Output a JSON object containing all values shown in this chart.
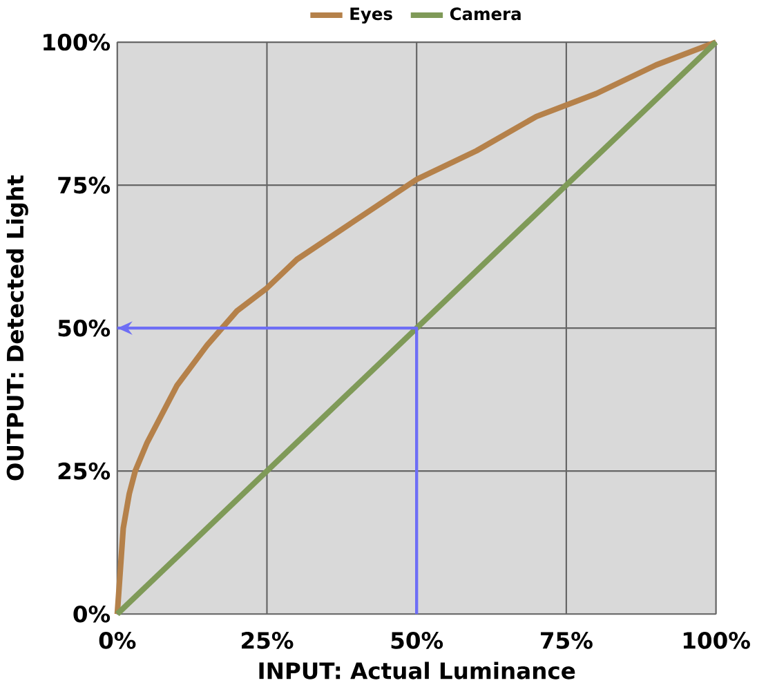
{
  "chart_data": {
    "type": "line",
    "xlabel": "INPUT: Actual Luminance",
    "ylabel": "OUTPUT: Detected Light",
    "xlim": [
      0,
      100
    ],
    "ylim": [
      0,
      100
    ],
    "xticks": [
      {
        "value": 0,
        "label": "0%"
      },
      {
        "value": 25,
        "label": "25%"
      },
      {
        "value": 50,
        "label": "50%"
      },
      {
        "value": 75,
        "label": "75%"
      },
      {
        "value": 100,
        "label": "100%"
      }
    ],
    "yticks": [
      {
        "value": 0,
        "label": "0%"
      },
      {
        "value": 25,
        "label": "25%"
      },
      {
        "value": 50,
        "label": "50%"
      },
      {
        "value": 75,
        "label": "75%"
      },
      {
        "value": 100,
        "label": "100%"
      }
    ],
    "grid": true,
    "legend": "top",
    "marker": "none",
    "line_style": "solid",
    "series": [
      {
        "name": "Eyes",
        "color": "#b5814a",
        "x": [
          0,
          1,
          2,
          3,
          5,
          7,
          10,
          15,
          20,
          25,
          30,
          40,
          50,
          60,
          70,
          80,
          90,
          100
        ],
        "values": [
          0,
          15,
          21,
          25,
          30,
          34,
          40,
          47,
          53,
          57,
          62,
          69,
          76,
          81,
          87,
          91,
          96,
          100
        ]
      },
      {
        "name": "Camera",
        "color": "#7f9a58",
        "x": [
          0,
          100
        ],
        "values": [
          0,
          100
        ]
      },
      {
        "type": "line",
        "color": "#6e6ef5",
        "x": [
          50,
          50,
          0
        ],
        "values": [
          0,
          50,
          50
        ]
      }
    ]
  }
}
